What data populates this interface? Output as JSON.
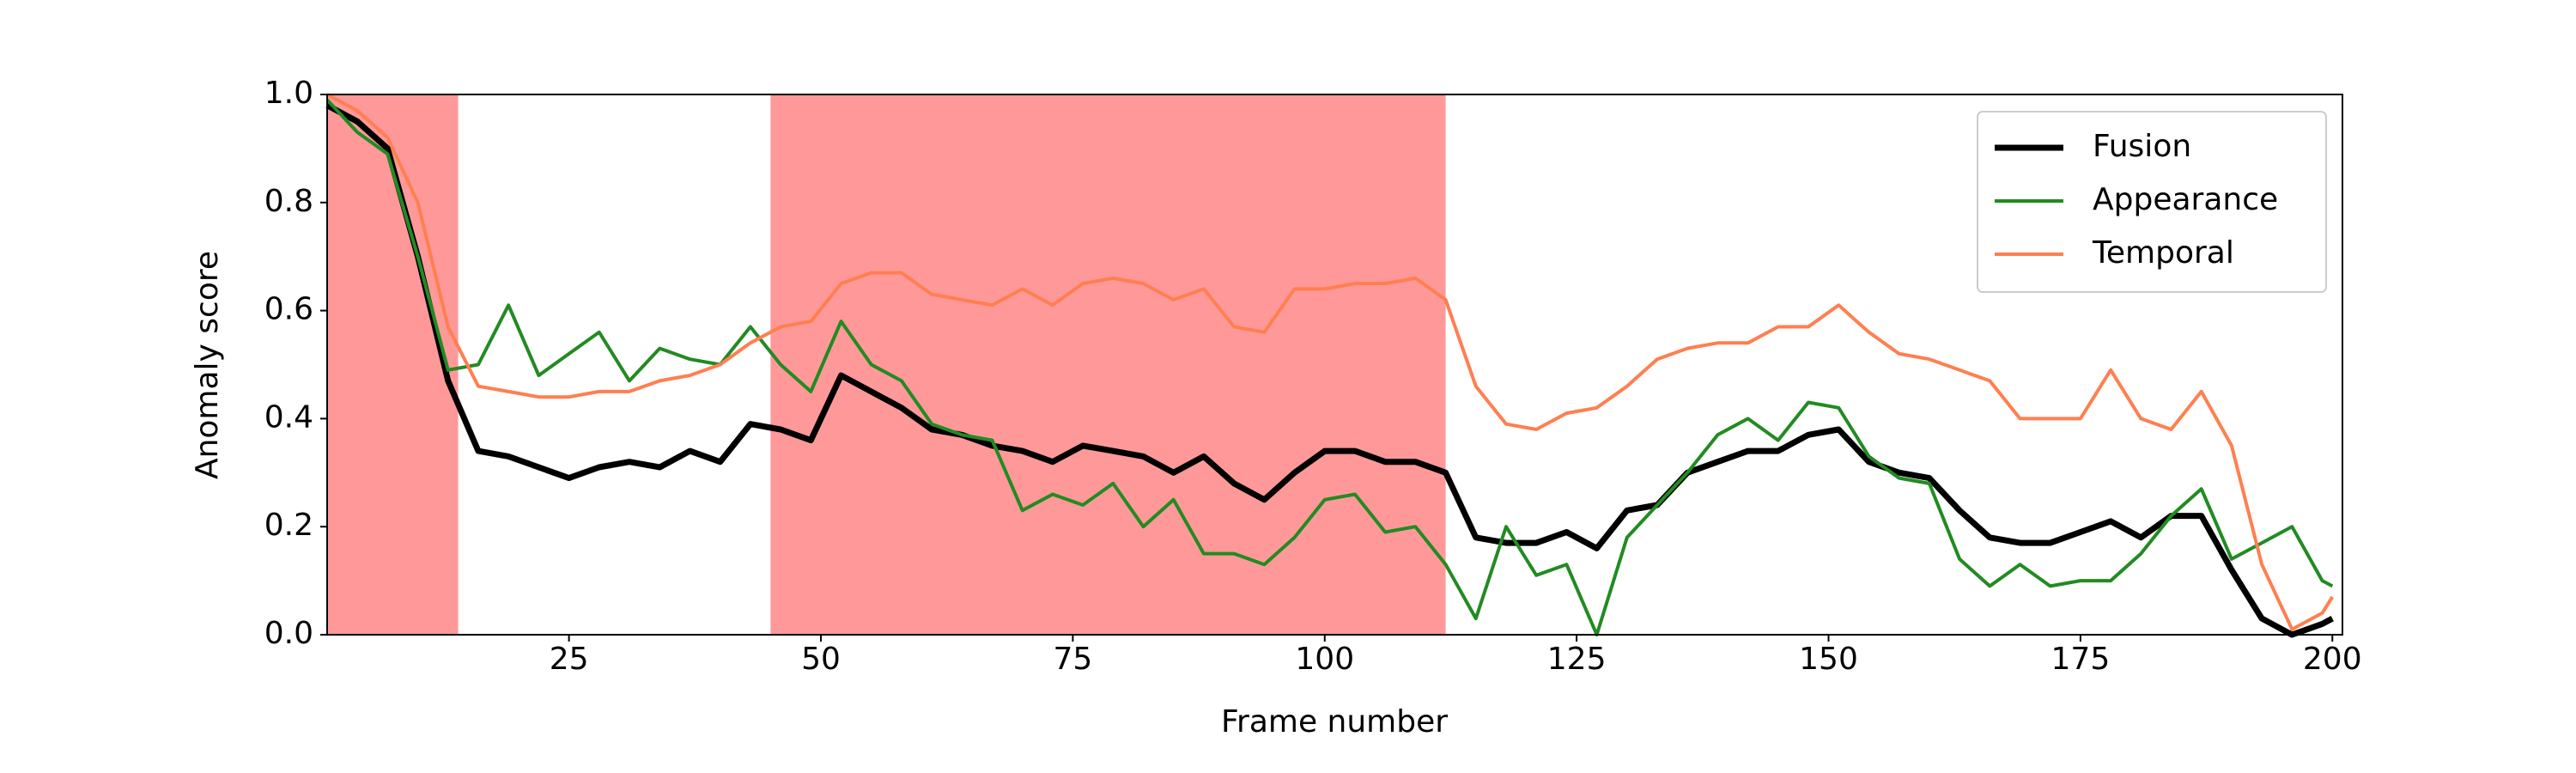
{
  "chart_data": {
    "type": "line",
    "xlabel": "Frame number",
    "ylabel": "Anomaly score",
    "x": [
      1,
      4,
      7,
      10,
      13,
      16,
      19,
      22,
      25,
      28,
      31,
      34,
      37,
      40,
      43,
      46,
      49,
      52,
      55,
      58,
      61,
      64,
      67,
      70,
      73,
      76,
      79,
      82,
      85,
      88,
      91,
      94,
      97,
      100,
      103,
      106,
      109,
      112,
      115,
      118,
      121,
      124,
      127,
      130,
      133,
      136,
      139,
      142,
      145,
      148,
      151,
      154,
      157,
      160,
      163,
      166,
      169,
      172,
      175,
      178,
      181,
      184,
      187,
      190,
      193,
      196,
      199,
      200
    ],
    "series": [
      {
        "name": "Fusion",
        "color": "#000000",
        "values": [
          0.98,
          0.95,
          0.9,
          0.7,
          0.47,
          0.34,
          0.33,
          0.31,
          0.29,
          0.31,
          0.32,
          0.31,
          0.34,
          0.32,
          0.39,
          0.38,
          0.36,
          0.48,
          0.45,
          0.42,
          0.38,
          0.37,
          0.35,
          0.34,
          0.32,
          0.35,
          0.34,
          0.33,
          0.3,
          0.33,
          0.28,
          0.25,
          0.3,
          0.34,
          0.34,
          0.32,
          0.32,
          0.3,
          0.18,
          0.17,
          0.17,
          0.19,
          0.16,
          0.23,
          0.24,
          0.3,
          0.32,
          0.34,
          0.34,
          0.37,
          0.38,
          0.32,
          0.3,
          0.29,
          0.23,
          0.18,
          0.17,
          0.17,
          0.19,
          0.21,
          0.18,
          0.22,
          0.22,
          0.12,
          0.03,
          0.0,
          0.02,
          0.03
        ]
      },
      {
        "name": "Appearance",
        "color": "#228b22",
        "values": [
          0.99,
          0.93,
          0.89,
          0.7,
          0.49,
          0.5,
          0.61,
          0.48,
          0.52,
          0.56,
          0.47,
          0.53,
          0.51,
          0.5,
          0.57,
          0.5,
          0.45,
          0.58,
          0.5,
          0.47,
          0.39,
          0.37,
          0.36,
          0.23,
          0.26,
          0.24,
          0.28,
          0.2,
          0.25,
          0.15,
          0.15,
          0.13,
          0.18,
          0.25,
          0.26,
          0.19,
          0.2,
          0.13,
          0.03,
          0.2,
          0.11,
          0.13,
          0.0,
          0.18,
          0.24,
          0.3,
          0.37,
          0.4,
          0.36,
          0.43,
          0.42,
          0.33,
          0.29,
          0.28,
          0.14,
          0.09,
          0.13,
          0.09,
          0.1,
          0.1,
          0.15,
          0.22,
          0.27,
          0.14,
          0.17,
          0.2,
          0.1,
          0.09
        ]
      },
      {
        "name": "Temporal",
        "color": "#ff7f50",
        "values": [
          1.0,
          0.97,
          0.92,
          0.8,
          0.57,
          0.46,
          0.45,
          0.44,
          0.44,
          0.45,
          0.45,
          0.47,
          0.48,
          0.5,
          0.54,
          0.57,
          0.58,
          0.65,
          0.67,
          0.67,
          0.63,
          0.62,
          0.61,
          0.64,
          0.61,
          0.65,
          0.66,
          0.65,
          0.62,
          0.64,
          0.57,
          0.56,
          0.64,
          0.64,
          0.65,
          0.65,
          0.66,
          0.62,
          0.46,
          0.39,
          0.38,
          0.41,
          0.42,
          0.46,
          0.51,
          0.53,
          0.54,
          0.54,
          0.57,
          0.57,
          0.61,
          0.56,
          0.52,
          0.51,
          0.49,
          0.47,
          0.4,
          0.4,
          0.4,
          0.49,
          0.4,
          0.38,
          0.45,
          0.35,
          0.13,
          0.01,
          0.04,
          0.07
        ]
      }
    ],
    "shaded_regions": [
      [
        1,
        14
      ],
      [
        45,
        112
      ]
    ],
    "shade_color": "#ff9999",
    "xlim": [
      1,
      201
    ],
    "xticks": [
      25,
      50,
      75,
      100,
      125,
      150,
      175,
      200
    ],
    "ylim": [
      0,
      1
    ],
    "yticks": [
      {
        "value": 0,
        "label": "0.0"
      },
      0.2,
      0.4,
      0.6,
      0.8,
      {
        "value": 1,
        "label": "1.0"
      }
    ],
    "legend": "upper right",
    "grid": false
  }
}
